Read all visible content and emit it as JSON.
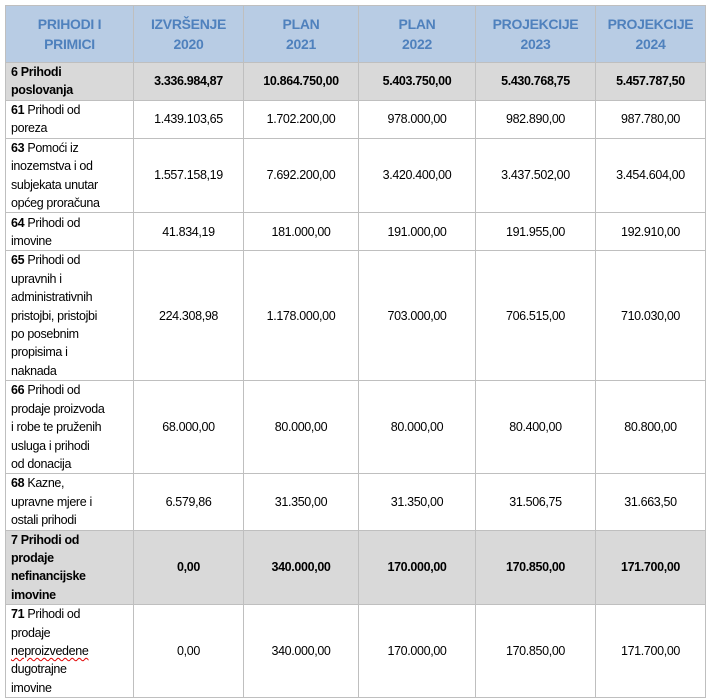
{
  "colors": {
    "header_bg": "#b8cce4",
    "header_text": "#4f81bd",
    "summary_bg": "#d9d9d9",
    "border": "#bfbfbf"
  },
  "headers": [
    "PRIHODI I\nPRIMICI",
    "IZVRŠENJE\n2020",
    "PLAN\n2021",
    "PLAN\n2022",
    "PROJEKCIJE\n2023",
    "PROJEKCIJE\n2024"
  ],
  "rows": [
    {
      "code": "6",
      "text": " Prihodi\nposlovanja",
      "summary": true,
      "values": [
        "3.336.984,87",
        "10.864.750,00",
        "5.403.750,00",
        "5.430.768,75",
        "5.457.787,50"
      ]
    },
    {
      "code": "61",
      "text": "  Prihodi od\nporeza",
      "values": [
        "1.439.103,65",
        "1.702.200,00",
        "978.000,00",
        "982.890,00",
        "987.780,00"
      ]
    },
    {
      "code": "63",
      "text": "  Pomoći iz\ninozemstva i od\nsubjekata unutar\nopćeg proračuna",
      "values": [
        "1.557.158,19",
        "7.692.200,00",
        "3.420.400,00",
        "3.437.502,00",
        "3.454.604,00"
      ]
    },
    {
      "code": "64",
      "text": " Prihodi od\nimovine",
      "values": [
        "41.834,19",
        "181.000,00",
        "191.000,00",
        "191.955,00",
        "192.910,00"
      ]
    },
    {
      "code": "65",
      "text": " Prihodi od\nupravnih i\nadministrativnih\npristojbi, pristojbi\npo posebnim\npropisima i\nnaknada",
      "values": [
        "224.308,98",
        "1.178.000,00",
        "703.000,00",
        "706.515,00",
        "710.030,00"
      ]
    },
    {
      "code": "66",
      "text": " Prihodi od\nprodaje proizvoda\ni robe te pruženih\nusluga i prihodi\nod donacija",
      "values": [
        "68.000,00",
        "80.000,00",
        "80.000,00",
        "80.400,00",
        "80.800,00"
      ]
    },
    {
      "code": "68",
      "text": " Kazne,\nupravne mjere i\nostali prihodi",
      "values": [
        "6.579,86",
        "31.350,00",
        "31.350,00",
        "31.506,75",
        "31.663,50"
      ]
    },
    {
      "code": "7",
      "text": " Prihodi od\nprodaje\nnefinancijske\nimovine",
      "summary": true,
      "values": [
        "0,00",
        "340.000,00",
        "170.000,00",
        "170.850,00",
        "171.700,00"
      ]
    },
    {
      "code": "71",
      "text": " Prihodi od\nprodaje\nneproizvedene\ndugotrajne\nimovine",
      "values": [
        "0,00",
        "340.000,00",
        "170.000,00",
        "170.850,00",
        "171.700,00"
      ]
    }
  ]
}
